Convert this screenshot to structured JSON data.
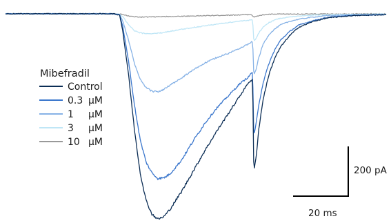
{
  "chart_data": {
    "type": "line",
    "title": "",
    "xlabel": "",
    "ylabel": "",
    "x_unit": "ms",
    "y_unit": "pA",
    "xlim": [
      0,
      130
    ],
    "ylim": [
      -750,
      20
    ],
    "grid": false,
    "legend": {
      "title": "Mibefradil",
      "placement": "left-middle",
      "entries": [
        {
          "concentration": "Control",
          "unit": ""
        },
        {
          "concentration": "0.3",
          "unit": "µM"
        },
        {
          "concentration": "1",
          "unit": "µM"
        },
        {
          "concentration": "3",
          "unit": "µM"
        },
        {
          "concentration": "10",
          "unit": "µM"
        }
      ]
    },
    "scale_bar": {
      "time_label": "20 ms",
      "time_value_ms": 20,
      "current_label": "200 pA",
      "current_value_pA": 200
    },
    "series": [
      {
        "name": "Control",
        "color": "#0b2d55",
        "points": [
          [
            0,
            0
          ],
          [
            37,
            0
          ],
          [
            39,
            -5
          ],
          [
            40,
            -60
          ],
          [
            42,
            -220
          ],
          [
            44,
            -420
          ],
          [
            46,
            -580
          ],
          [
            48,
            -680
          ],
          [
            50,
            -730
          ],
          [
            52,
            -748
          ],
          [
            54,
            -740
          ],
          [
            56,
            -715
          ],
          [
            60,
            -650
          ],
          [
            64,
            -575
          ],
          [
            68,
            -500
          ],
          [
            72,
            -430
          ],
          [
            76,
            -365
          ],
          [
            80,
            -300
          ],
          [
            83,
            -250
          ],
          [
            84.4,
            -240
          ],
          [
            84.8,
            -580
          ],
          [
            85.6,
            -520
          ],
          [
            86.5,
            -420
          ],
          [
            88,
            -310
          ],
          [
            90,
            -220
          ],
          [
            92,
            -160
          ],
          [
            94,
            -120
          ],
          [
            97,
            -80
          ],
          [
            100,
            -50
          ],
          [
            105,
            -28
          ],
          [
            110,
            -15
          ],
          [
            118,
            -7
          ],
          [
            130,
            -3
          ]
        ]
      },
      {
        "name": "0.3 µM",
        "color": "#3a76cc",
        "points": [
          [
            0,
            0
          ],
          [
            37,
            0
          ],
          [
            39,
            -4
          ],
          [
            40,
            -45
          ],
          [
            42,
            -170
          ],
          [
            44,
            -330
          ],
          [
            46,
            -460
          ],
          [
            48,
            -540
          ],
          [
            50,
            -580
          ],
          [
            52,
            -600
          ],
          [
            54,
            -598
          ],
          [
            56,
            -585
          ],
          [
            60,
            -535
          ],
          [
            64,
            -465
          ],
          [
            68,
            -400
          ],
          [
            72,
            -345
          ],
          [
            76,
            -300
          ],
          [
            80,
            -255
          ],
          [
            83,
            -230
          ],
          [
            84.4,
            -210
          ],
          [
            84.8,
            -450
          ],
          [
            85.6,
            -400
          ],
          [
            86.5,
            -330
          ],
          [
            88,
            -250
          ],
          [
            90,
            -180
          ],
          [
            92,
            -130
          ],
          [
            94,
            -95
          ],
          [
            97,
            -65
          ],
          [
            100,
            -42
          ],
          [
            105,
            -25
          ],
          [
            110,
            -13
          ],
          [
            118,
            -6
          ],
          [
            130,
            -3
          ]
        ]
      },
      {
        "name": "1 µM",
        "color": "#86b2e6",
        "points": [
          [
            0,
            0
          ],
          [
            37,
            0
          ],
          [
            39,
            -3
          ],
          [
            40,
            -25
          ],
          [
            42,
            -95
          ],
          [
            44,
            -180
          ],
          [
            46,
            -240
          ],
          [
            48,
            -270
          ],
          [
            50,
            -282
          ],
          [
            52,
            -284
          ],
          [
            54,
            -276
          ],
          [
            56,
            -262
          ],
          [
            60,
            -235
          ],
          [
            64,
            -205
          ],
          [
            68,
            -180
          ],
          [
            72,
            -160
          ],
          [
            76,
            -145
          ],
          [
            80,
            -125
          ],
          [
            83,
            -110
          ],
          [
            84.4,
            -100
          ],
          [
            84.8,
            -225
          ],
          [
            85.6,
            -200
          ],
          [
            86.5,
            -160
          ],
          [
            88,
            -110
          ],
          [
            90,
            -75
          ],
          [
            92,
            -55
          ],
          [
            94,
            -40
          ],
          [
            97,
            -28
          ],
          [
            100,
            -20
          ],
          [
            105,
            -12
          ],
          [
            110,
            -7
          ],
          [
            118,
            -4
          ],
          [
            130,
            -2
          ]
        ]
      },
      {
        "name": "3 µM",
        "color": "#bfe6f6",
        "points": [
          [
            0,
            0
          ],
          [
            37,
            0
          ],
          [
            39,
            -2
          ],
          [
            40,
            -10
          ],
          [
            42,
            -40
          ],
          [
            44,
            -62
          ],
          [
            46,
            -70
          ],
          [
            48,
            -72
          ],
          [
            50,
            -72
          ],
          [
            52,
            -71
          ],
          [
            54,
            -68
          ],
          [
            56,
            -64
          ],
          [
            60,
            -57
          ],
          [
            64,
            -50
          ],
          [
            68,
            -44
          ],
          [
            72,
            -38
          ],
          [
            76,
            -32
          ],
          [
            80,
            -27
          ],
          [
            83,
            -24
          ],
          [
            84.4,
            -22
          ],
          [
            84.8,
            -100
          ],
          [
            85.6,
            -88
          ],
          [
            86.5,
            -70
          ],
          [
            88,
            -48
          ],
          [
            90,
            -32
          ],
          [
            92,
            -22
          ],
          [
            94,
            -16
          ],
          [
            97,
            -12
          ],
          [
            100,
            -8
          ],
          [
            105,
            -5
          ],
          [
            110,
            -3
          ],
          [
            118,
            -2
          ],
          [
            130,
            -1
          ]
        ]
      },
      {
        "name": "10 µM",
        "color": "#999999",
        "points": [
          [
            0,
            0
          ],
          [
            37,
            0
          ],
          [
            39,
            -1
          ],
          [
            40,
            -3
          ],
          [
            42,
            -8
          ],
          [
            44,
            -11
          ],
          [
            46,
            -12
          ],
          [
            48,
            -12
          ],
          [
            52,
            -11
          ],
          [
            56,
            -10
          ],
          [
            60,
            -9
          ],
          [
            64,
            -8
          ],
          [
            68,
            -7
          ],
          [
            72,
            -6
          ],
          [
            76,
            -5
          ],
          [
            80,
            -4
          ],
          [
            83,
            -3
          ],
          [
            84,
            -3
          ],
          [
            84.8,
            -12
          ],
          [
            85.6,
            -10
          ],
          [
            86.5,
            -7
          ],
          [
            88,
            -4
          ],
          [
            90,
            -2
          ],
          [
            94,
            -1
          ],
          [
            100,
            -1
          ],
          [
            130,
            0
          ]
        ]
      }
    ]
  }
}
